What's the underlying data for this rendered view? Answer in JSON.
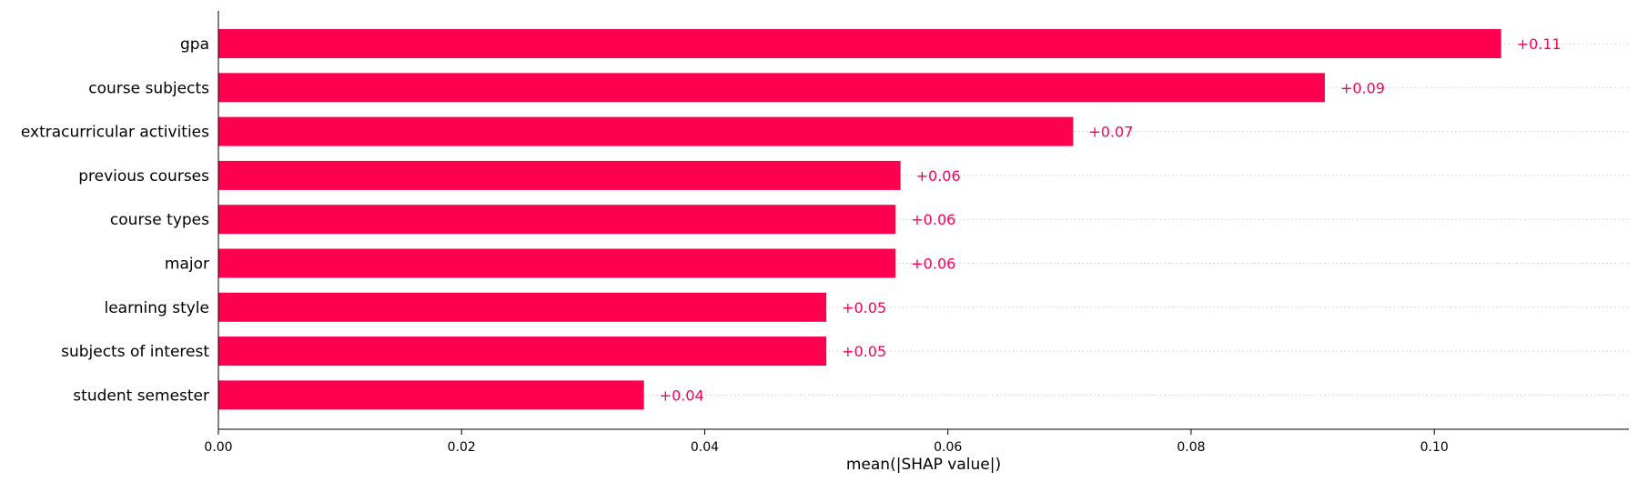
{
  "chart_data": {
    "type": "bar",
    "orientation": "horizontal",
    "categories": [
      "gpa",
      "course subjects",
      "extracurricular activities",
      "previous courses",
      "course types",
      "major",
      "learning style",
      "subjects of interest",
      "student semester"
    ],
    "values": [
      0.1055,
      0.091,
      0.0703,
      0.0561,
      0.0557,
      0.0557,
      0.05,
      0.05,
      0.035
    ],
    "value_labels": [
      "+0.11",
      "+0.09",
      "+0.07",
      "+0.06",
      "+0.06",
      "+0.06",
      "+0.05",
      "+0.05",
      "+0.04"
    ],
    "xlabel": "mean(|SHAP value|)",
    "xlim": [
      0,
      0.116
    ],
    "xticks": [
      0.0,
      0.02,
      0.04,
      0.06,
      0.08,
      0.1
    ],
    "xtick_labels": [
      "0.00",
      "0.02",
      "0.04",
      "0.06",
      "0.08",
      "0.10"
    ],
    "bar_color": "#ff0051",
    "label_color": "#ff0051",
    "grid": "dotted horizontal guide per bar",
    "legend": "none"
  }
}
